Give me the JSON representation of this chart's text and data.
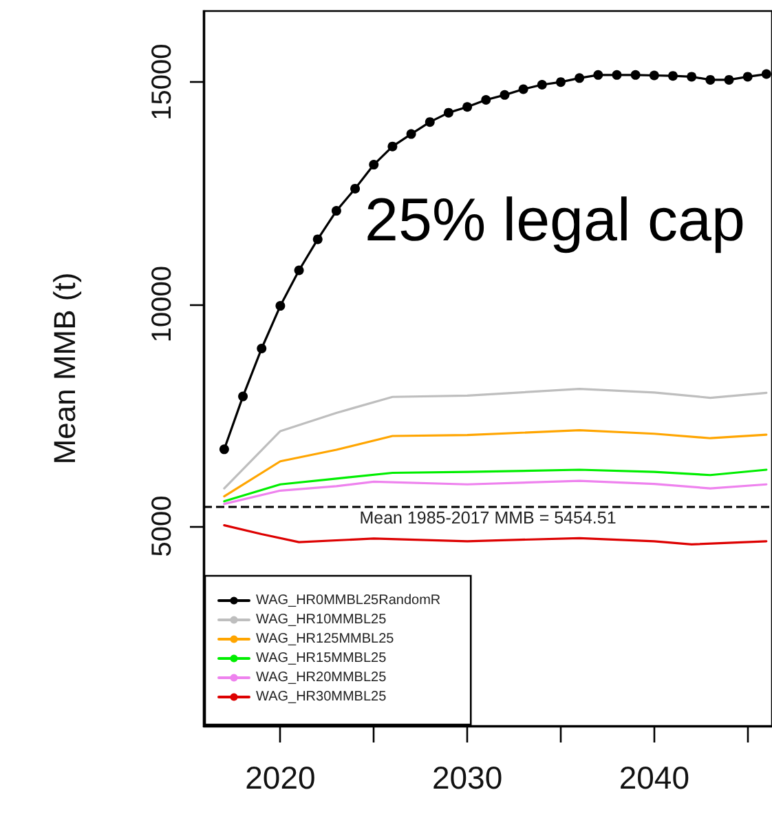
{
  "chart_data": {
    "type": "line",
    "ylabel": "Mean MMB (t)",
    "xlim": [
      2015.9,
      2046.3
    ],
    "ylim": [
      500,
      16600
    ],
    "xticks": [
      2020,
      {
        "value": 2025,
        "label": null
      },
      2030,
      {
        "value": 2035,
        "label": null
      },
      2040,
      {
        "value": 2045,
        "label": null
      }
    ],
    "yticks": [
      5000,
      10000,
      15000
    ],
    "grid": false,
    "legend": "bottom left",
    "line_style": "solid",
    "annotations": [
      "25% legal cap"
    ],
    "ref_lines": [
      {
        "axis": "y",
        "value": 5454.51,
        "label": "Mean 1985-2017 MMB = 5454.51",
        "color": "#000000",
        "line_style": "dashed"
      }
    ],
    "series": [
      {
        "name": "WAG_HR0MMBL25RandomR",
        "color": "#000000",
        "marker": "circle",
        "x": [
          2017,
          2018,
          2019,
          2020,
          2021,
          2022,
          2023,
          2024,
          2025,
          2026,
          2027,
          2028,
          2029,
          2030,
          2031,
          2032,
          2033,
          2034,
          2035,
          2036,
          2037,
          2038,
          2039,
          2040,
          2041,
          2042,
          2043,
          2044,
          2045,
          2046
        ],
        "values": [
          6730,
          7920,
          9000,
          9960,
          10760,
          11460,
          12100,
          12600,
          13140,
          13550,
          13830,
          14100,
          14310,
          14440,
          14600,
          14710,
          14840,
          14940,
          15000,
          15090,
          15160,
          15160,
          15160,
          15150,
          15140,
          15120,
          15050,
          15050,
          15120,
          15180
        ]
      },
      {
        "name": "WAG_HR10MMBL25",
        "color": "#bebebe",
        "marker": "none",
        "x": [
          2017,
          2020,
          2023,
          2026,
          2030,
          2036,
          2040,
          2043,
          2046
        ],
        "values": [
          5850,
          7140,
          7550,
          7910,
          7940,
          8090,
          8010,
          7890,
          8000
        ]
      },
      {
        "name": "WAG_HR125MMBL25",
        "color": "#ffa500",
        "marker": "none",
        "x": [
          2017,
          2020,
          2023,
          2026,
          2030,
          2036,
          2040,
          2043,
          2046
        ],
        "values": [
          5670,
          6460,
          6720,
          7030,
          7050,
          7160,
          7080,
          6980,
          7060
        ]
      },
      {
        "name": "WAG_HR15MMBL25",
        "color": "#00ee00",
        "marker": "none",
        "x": [
          2017,
          2020,
          2023,
          2026,
          2030,
          2036,
          2040,
          2043,
          2046
        ],
        "values": [
          5560,
          5940,
          6070,
          6200,
          6220,
          6270,
          6220,
          6150,
          6270
        ]
      },
      {
        "name": "WAG_HR20MMBL25",
        "color": "#ee82ee",
        "marker": "none",
        "x": [
          2017,
          2020,
          2023,
          2025,
          2030,
          2036,
          2040,
          2043,
          2046
        ],
        "values": [
          5500,
          5800,
          5900,
          6000,
          5940,
          6020,
          5950,
          5850,
          5940
        ]
      },
      {
        "name": "WAG_HR30MMBL25",
        "color": "#dd0000",
        "marker": "none",
        "x": [
          2017,
          2019,
          2021,
          2025,
          2030,
          2036,
          2040,
          2042,
          2046
        ],
        "values": [
          5020,
          4820,
          4640,
          4720,
          4660,
          4730,
          4660,
          4590,
          4660
        ]
      }
    ]
  }
}
